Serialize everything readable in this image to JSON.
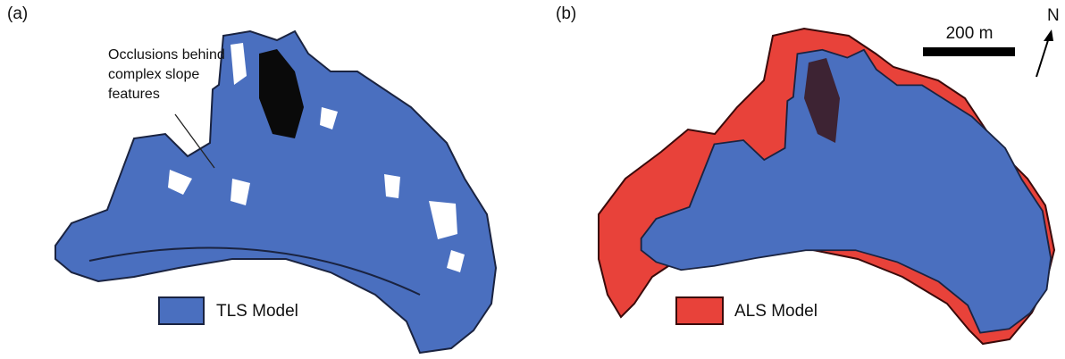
{
  "panel_a": {
    "label": "(a)",
    "annotation": {
      "lines": [
        "Occlusions behind",
        "complex slope",
        "features"
      ]
    },
    "legend": "TLS Model"
  },
  "panel_b": {
    "label": "(b)",
    "legend": "ALS Model",
    "scale_bar": "200 m",
    "north": "N"
  }
}
